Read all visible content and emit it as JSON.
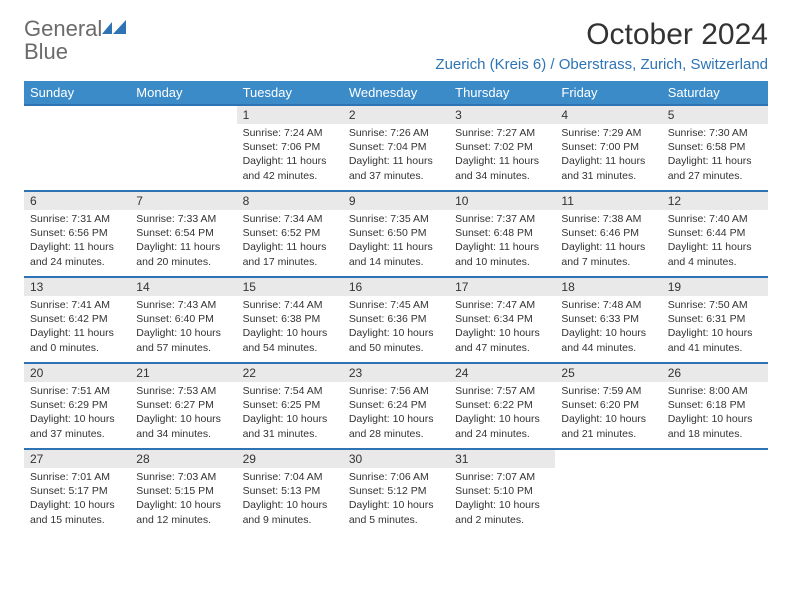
{
  "logo": {
    "word1": "General",
    "word2": "Blue"
  },
  "title": "October 2024",
  "location": "Zuerich (Kreis 6) / Oberstrass, Zurich, Switzerland",
  "colors": {
    "header_bg": "#3b8bc9",
    "header_fg": "#ffffff",
    "rule": "#2e74b5",
    "daynum_bg": "#e9e9e9",
    "text": "#333333",
    "logo_gray": "#6b6b6b",
    "logo_blue": "#2e74b5",
    "page_bg": "#ffffff"
  },
  "day_headers": [
    "Sunday",
    "Monday",
    "Tuesday",
    "Wednesday",
    "Thursday",
    "Friday",
    "Saturday"
  ],
  "weeks": [
    [
      null,
      null,
      {
        "n": "1",
        "sr": "Sunrise: 7:24 AM",
        "ss": "Sunset: 7:06 PM",
        "d1": "Daylight: 11 hours",
        "d2": "and 42 minutes."
      },
      {
        "n": "2",
        "sr": "Sunrise: 7:26 AM",
        "ss": "Sunset: 7:04 PM",
        "d1": "Daylight: 11 hours",
        "d2": "and 37 minutes."
      },
      {
        "n": "3",
        "sr": "Sunrise: 7:27 AM",
        "ss": "Sunset: 7:02 PM",
        "d1": "Daylight: 11 hours",
        "d2": "and 34 minutes."
      },
      {
        "n": "4",
        "sr": "Sunrise: 7:29 AM",
        "ss": "Sunset: 7:00 PM",
        "d1": "Daylight: 11 hours",
        "d2": "and 31 minutes."
      },
      {
        "n": "5",
        "sr": "Sunrise: 7:30 AM",
        "ss": "Sunset: 6:58 PM",
        "d1": "Daylight: 11 hours",
        "d2": "and 27 minutes."
      }
    ],
    [
      {
        "n": "6",
        "sr": "Sunrise: 7:31 AM",
        "ss": "Sunset: 6:56 PM",
        "d1": "Daylight: 11 hours",
        "d2": "and 24 minutes."
      },
      {
        "n": "7",
        "sr": "Sunrise: 7:33 AM",
        "ss": "Sunset: 6:54 PM",
        "d1": "Daylight: 11 hours",
        "d2": "and 20 minutes."
      },
      {
        "n": "8",
        "sr": "Sunrise: 7:34 AM",
        "ss": "Sunset: 6:52 PM",
        "d1": "Daylight: 11 hours",
        "d2": "and 17 minutes."
      },
      {
        "n": "9",
        "sr": "Sunrise: 7:35 AM",
        "ss": "Sunset: 6:50 PM",
        "d1": "Daylight: 11 hours",
        "d2": "and 14 minutes."
      },
      {
        "n": "10",
        "sr": "Sunrise: 7:37 AM",
        "ss": "Sunset: 6:48 PM",
        "d1": "Daylight: 11 hours",
        "d2": "and 10 minutes."
      },
      {
        "n": "11",
        "sr": "Sunrise: 7:38 AM",
        "ss": "Sunset: 6:46 PM",
        "d1": "Daylight: 11 hours",
        "d2": "and 7 minutes."
      },
      {
        "n": "12",
        "sr": "Sunrise: 7:40 AM",
        "ss": "Sunset: 6:44 PM",
        "d1": "Daylight: 11 hours",
        "d2": "and 4 minutes."
      }
    ],
    [
      {
        "n": "13",
        "sr": "Sunrise: 7:41 AM",
        "ss": "Sunset: 6:42 PM",
        "d1": "Daylight: 11 hours",
        "d2": "and 0 minutes."
      },
      {
        "n": "14",
        "sr": "Sunrise: 7:43 AM",
        "ss": "Sunset: 6:40 PM",
        "d1": "Daylight: 10 hours",
        "d2": "and 57 minutes."
      },
      {
        "n": "15",
        "sr": "Sunrise: 7:44 AM",
        "ss": "Sunset: 6:38 PM",
        "d1": "Daylight: 10 hours",
        "d2": "and 54 minutes."
      },
      {
        "n": "16",
        "sr": "Sunrise: 7:45 AM",
        "ss": "Sunset: 6:36 PM",
        "d1": "Daylight: 10 hours",
        "d2": "and 50 minutes."
      },
      {
        "n": "17",
        "sr": "Sunrise: 7:47 AM",
        "ss": "Sunset: 6:34 PM",
        "d1": "Daylight: 10 hours",
        "d2": "and 47 minutes."
      },
      {
        "n": "18",
        "sr": "Sunrise: 7:48 AM",
        "ss": "Sunset: 6:33 PM",
        "d1": "Daylight: 10 hours",
        "d2": "and 44 minutes."
      },
      {
        "n": "19",
        "sr": "Sunrise: 7:50 AM",
        "ss": "Sunset: 6:31 PM",
        "d1": "Daylight: 10 hours",
        "d2": "and 41 minutes."
      }
    ],
    [
      {
        "n": "20",
        "sr": "Sunrise: 7:51 AM",
        "ss": "Sunset: 6:29 PM",
        "d1": "Daylight: 10 hours",
        "d2": "and 37 minutes."
      },
      {
        "n": "21",
        "sr": "Sunrise: 7:53 AM",
        "ss": "Sunset: 6:27 PM",
        "d1": "Daylight: 10 hours",
        "d2": "and 34 minutes."
      },
      {
        "n": "22",
        "sr": "Sunrise: 7:54 AM",
        "ss": "Sunset: 6:25 PM",
        "d1": "Daylight: 10 hours",
        "d2": "and 31 minutes."
      },
      {
        "n": "23",
        "sr": "Sunrise: 7:56 AM",
        "ss": "Sunset: 6:24 PM",
        "d1": "Daylight: 10 hours",
        "d2": "and 28 minutes."
      },
      {
        "n": "24",
        "sr": "Sunrise: 7:57 AM",
        "ss": "Sunset: 6:22 PM",
        "d1": "Daylight: 10 hours",
        "d2": "and 24 minutes."
      },
      {
        "n": "25",
        "sr": "Sunrise: 7:59 AM",
        "ss": "Sunset: 6:20 PM",
        "d1": "Daylight: 10 hours",
        "d2": "and 21 minutes."
      },
      {
        "n": "26",
        "sr": "Sunrise: 8:00 AM",
        "ss": "Sunset: 6:18 PM",
        "d1": "Daylight: 10 hours",
        "d2": "and 18 minutes."
      }
    ],
    [
      {
        "n": "27",
        "sr": "Sunrise: 7:01 AM",
        "ss": "Sunset: 5:17 PM",
        "d1": "Daylight: 10 hours",
        "d2": "and 15 minutes."
      },
      {
        "n": "28",
        "sr": "Sunrise: 7:03 AM",
        "ss": "Sunset: 5:15 PM",
        "d1": "Daylight: 10 hours",
        "d2": "and 12 minutes."
      },
      {
        "n": "29",
        "sr": "Sunrise: 7:04 AM",
        "ss": "Sunset: 5:13 PM",
        "d1": "Daylight: 10 hours",
        "d2": "and 9 minutes."
      },
      {
        "n": "30",
        "sr": "Sunrise: 7:06 AM",
        "ss": "Sunset: 5:12 PM",
        "d1": "Daylight: 10 hours",
        "d2": "and 5 minutes."
      },
      {
        "n": "31",
        "sr": "Sunrise: 7:07 AM",
        "ss": "Sunset: 5:10 PM",
        "d1": "Daylight: 10 hours",
        "d2": "and 2 minutes."
      },
      null,
      null
    ]
  ]
}
